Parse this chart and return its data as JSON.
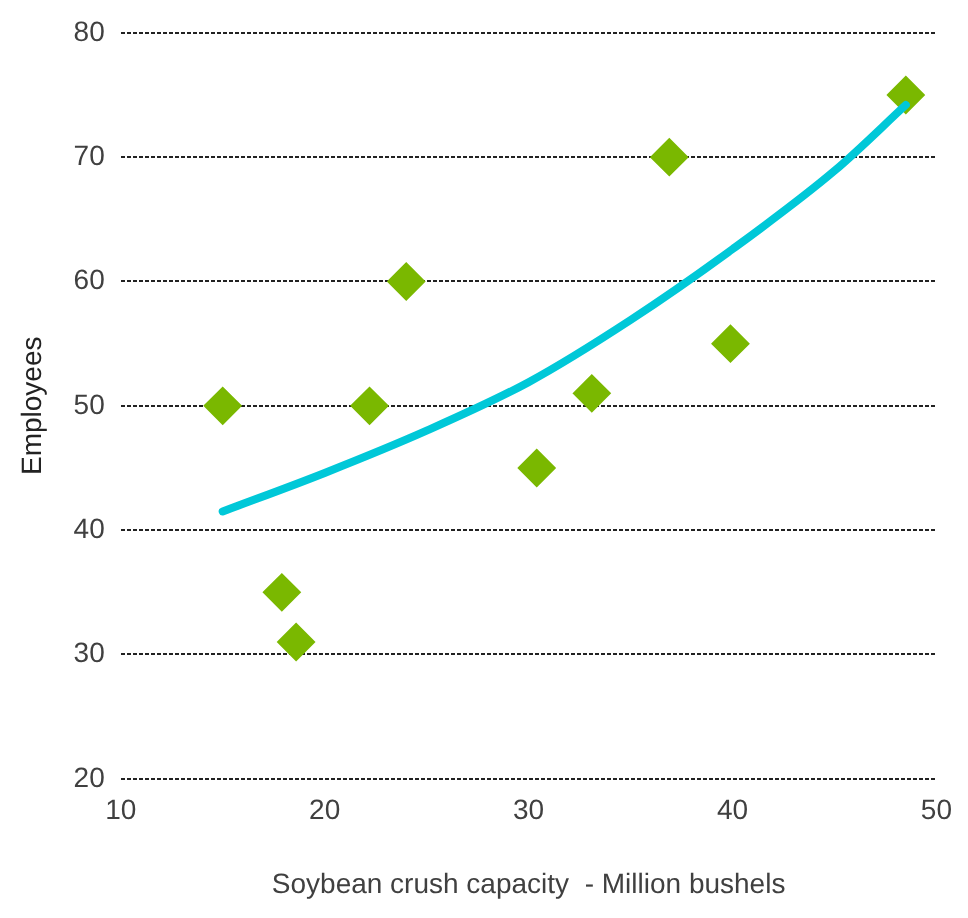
{
  "chart_data": {
    "type": "scatter",
    "xlabel": "Soybean crush capacity  - Million bushels",
    "ylabel": "Employees",
    "xlim": [
      10,
      50
    ],
    "xticks": [
      10,
      20,
      30,
      40,
      50
    ],
    "ylim": [
      20,
      80
    ],
    "yticks": [
      20,
      30,
      40,
      50,
      60,
      70,
      80
    ],
    "grid": "y",
    "legend": false,
    "marker": "diamond",
    "series": [
      {
        "color": "#7ab800",
        "x": [
          15,
          17.9,
          18.6,
          22.2,
          24,
          30.4,
          33.1,
          36.9,
          39.9,
          48.5
        ],
        "values": [
          50,
          35,
          31,
          50,
          60,
          45,
          51,
          70,
          55,
          75
        ]
      },
      {
        "type": "line",
        "color": "#00c8d8",
        "marker": "none",
        "x": [
          15,
          20,
          25,
          30,
          35,
          40,
          45,
          48.5
        ],
        "values": [
          41.5,
          44.6,
          48.0,
          51.9,
          56.9,
          62.6,
          68.9,
          74.2
        ]
      }
    ]
  }
}
